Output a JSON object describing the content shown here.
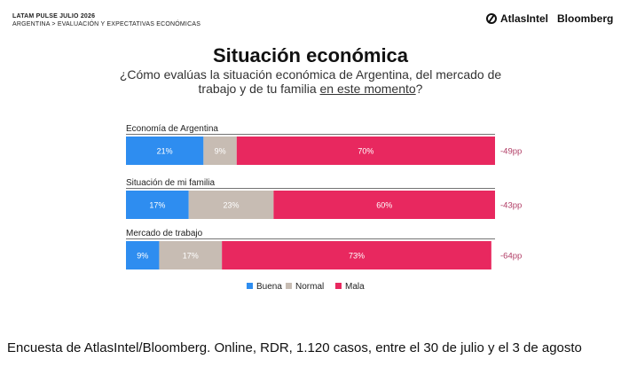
{
  "header": {
    "line1": "LATAM PULSE JULIO 2026",
    "line2": "ARGENTINA > EVALUACIÓN Y EXPECTATIVAS ECONÓMICAS",
    "brand1": "AtlasIntel",
    "brand2": "Bloomberg"
  },
  "question": {
    "before": "¿Cómo evalúas la situación económica de Argentina, del mercado de trabajo y de tu familia ",
    "emphasis": "en este momento",
    "after": "?"
  },
  "footer": "Encuesta de AtlasIntel/Bloomberg. Online, RDR, 1.120 casos, entre el 30 de julio y el 3 de agosto",
  "chart_data": {
    "type": "bar",
    "orientation": "horizontal",
    "stacked": true,
    "title": "Situación económica",
    "categories": [
      "Economía de Argentina",
      "Situación de mi familia",
      "Mercado de trabajo"
    ],
    "series": [
      {
        "name": "Buena",
        "color": "#2e8df0",
        "values": [
          21,
          17,
          9
        ],
        "labels": [
          "21%",
          "17%",
          "9%"
        ]
      },
      {
        "name": "Normal",
        "color": "#c7bcb3",
        "values": [
          9,
          23,
          17
        ],
        "labels": [
          "9%",
          "23%",
          "17%"
        ]
      },
      {
        "name": "Mala",
        "color": "#e8285f",
        "values": [
          70,
          60,
          73
        ],
        "labels": [
          "70%",
          "60%",
          "73%"
        ]
      }
    ],
    "net": [
      "-49pp",
      "-43pp",
      "-64pp"
    ],
    "net_color": "#b03a63",
    "xlim": [
      0,
      100
    ],
    "legend": "bottom-center",
    "grid": false
  }
}
